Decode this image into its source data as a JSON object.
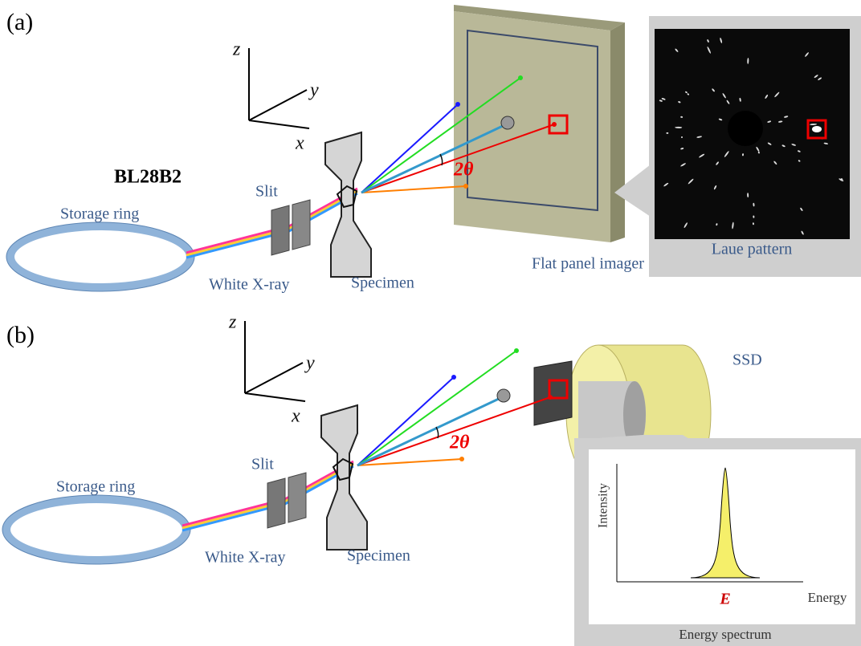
{
  "panel_a": {
    "label": "(a)",
    "axis_z": "z",
    "axis_y": "y",
    "axis_x": "x",
    "beamline": "BL28B2",
    "storage_ring": "Storage ring",
    "slit": "Slit",
    "white_xray": "White X-ray",
    "specimen": "Specimen",
    "angle": "2θ",
    "detector": "Flat panel imager",
    "inset_caption": "Laue pattern"
  },
  "panel_b": {
    "label": "(b)",
    "axis_z": "z",
    "axis_y": "y",
    "axis_x": "x",
    "storage_ring": "Storage ring",
    "slit": "Slit",
    "white_xray": "White X-ray",
    "specimen": "Specimen",
    "angle": "2θ",
    "detector": "SSD",
    "inset": {
      "y_axis": "Intensity",
      "x_axis": "Energy",
      "peak": "E",
      "caption": "Energy spectrum"
    }
  }
}
